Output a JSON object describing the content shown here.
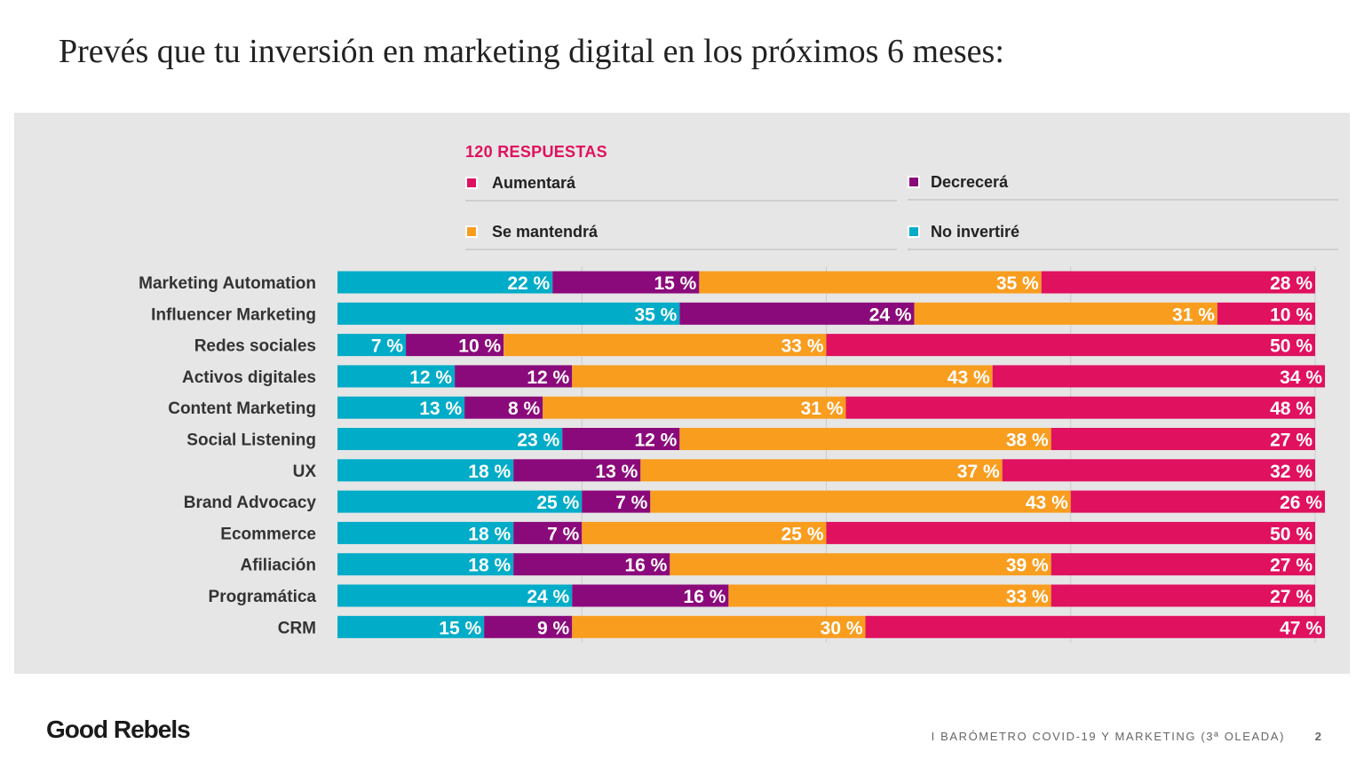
{
  "title": "Prevés que tu inversión en marketing digital en los próximos 6 meses:",
  "responses_label": "120 RESPUESTAS",
  "colors": {
    "accent": "#e0115f",
    "panel_bg": "#e6e6e6",
    "aumentara": "#e0115f",
    "decrecera": "#8b0a7b",
    "se_mantendra": "#f99d1f",
    "no_invertire": "#00acc8"
  },
  "legend": [
    {
      "label": "Aumentará",
      "color": "#e0115f"
    },
    {
      "label": "Decrecerá",
      "color": "#8b0a7b"
    },
    {
      "label": "Se mantendrá",
      "color": "#f99d1f"
    },
    {
      "label": "No invertiré",
      "color": "#00acc8"
    }
  ],
  "chart_data": {
    "type": "bar",
    "orientation": "horizontal",
    "stacked": true,
    "categories": [
      "Marketing Automation",
      "Influencer Marketing",
      "Redes sociales",
      "Activos digitales",
      "Content Marketing",
      "Social Listening",
      "UX",
      "Brand Advocacy",
      "Ecommerce",
      "Afiliación",
      "Programática",
      "CRM"
    ],
    "series": [
      {
        "name": "No invertiré",
        "color": "#00acc8",
        "values": [
          22,
          35,
          7,
          12,
          13,
          23,
          18,
          25,
          18,
          18,
          24,
          15
        ]
      },
      {
        "name": "Decrecerá",
        "color": "#8b0a7b",
        "values": [
          15,
          24,
          10,
          12,
          8,
          12,
          13,
          7,
          7,
          16,
          16,
          9
        ]
      },
      {
        "name": "Se mantendrá",
        "color": "#f99d1f",
        "values": [
          35,
          31,
          33,
          43,
          31,
          38,
          37,
          43,
          25,
          39,
          33,
          30
        ]
      },
      {
        "name": "Aumentará",
        "color": "#e0115f",
        "values": [
          28,
          10,
          50,
          34,
          48,
          27,
          32,
          26,
          50,
          27,
          27,
          47
        ]
      }
    ],
    "value_suffix": " %",
    "xlim": [
      0,
      100
    ],
    "grid": true,
    "legend_position": "top"
  },
  "footer": {
    "logo": "Good Rebels",
    "text": "I BARÓMETRO COVID-19 Y MARKETING (3ª OLEADA)",
    "page": "2"
  }
}
